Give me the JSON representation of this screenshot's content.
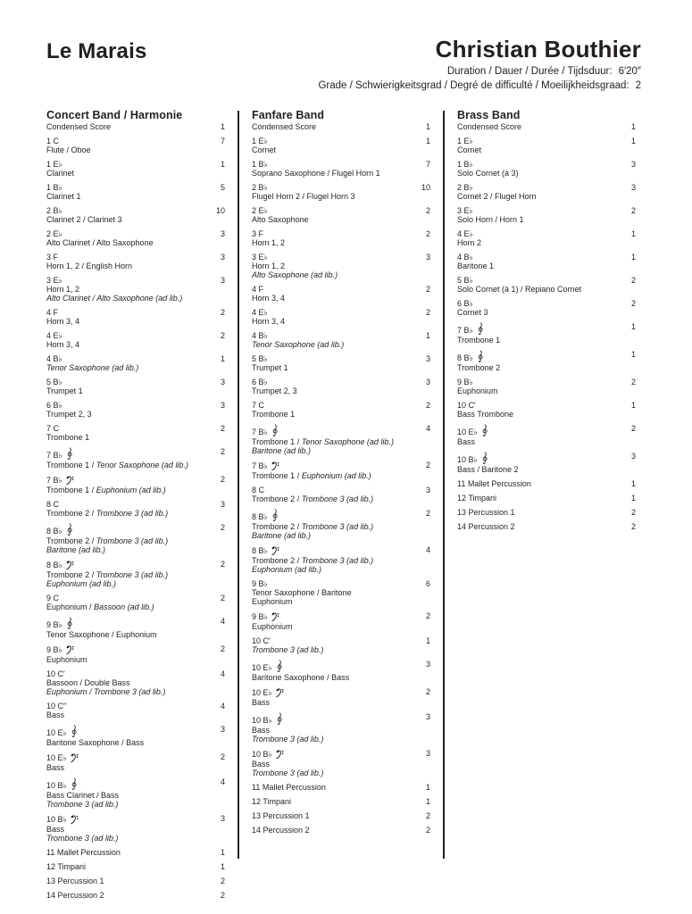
{
  "header": {
    "title": "Le Marais",
    "composer": "Christian Bouthier",
    "duration_label": "Duration / Dauer / Durée / Tijdsduur:",
    "duration_value": "6′20″",
    "grade_label": "Grade / Schwierigkeitsgrad / Degré de difficulté / Moeilijkheidsgraad:",
    "grade_value": "2"
  },
  "colors": {
    "text": "#231f20",
    "divider": "#231f20",
    "background": "#ffffff"
  },
  "icons": {
    "treble_clef": "treble-clef-icon",
    "bass_clef": "bass-clef-icon",
    "flat_sign": "♭"
  },
  "columns": [
    {
      "title": "Concert Band / Harmonie",
      "items": [
        {
          "head": "Condensed Score",
          "lines": [],
          "count": "1"
        },
        {
          "head": "1 C",
          "lines": [
            "Flute / Oboe"
          ],
          "count": "7"
        },
        {
          "head": "1 E♭",
          "lines": [
            "Clarinet"
          ],
          "count": "1"
        },
        {
          "head": "1 B♭",
          "lines": [
            "Clarinet 1"
          ],
          "count": "5"
        },
        {
          "head": "2 B♭",
          "lines": [
            "Clarinet 2 / Clarinet 3"
          ],
          "count": "10"
        },
        {
          "head": "2 E♭",
          "lines": [
            "Alto Clarinet / Alto Saxophone"
          ],
          "count": "3"
        },
        {
          "head": "3 F",
          "lines": [
            "Horn 1, 2 / English Horn"
          ],
          "count": "3"
        },
        {
          "head": "3 E♭",
          "lines": [
            "Horn 1, 2",
            "*Alto Clarinet / Alto Saxophone (ad lib.)*"
          ],
          "count": "3"
        },
        {
          "head": "4 F",
          "lines": [
            "Horn 3, 4"
          ],
          "count": "2"
        },
        {
          "head": "4 E♭",
          "lines": [
            "Horn 3, 4"
          ],
          "count": "2"
        },
        {
          "head": "4 B♭",
          "lines": [
            "*Tenor Saxophone (ad lib.)*"
          ],
          "count": "1"
        },
        {
          "head": "5 B♭",
          "lines": [
            "Trumpet 1"
          ],
          "count": "3"
        },
        {
          "head": "6 B♭",
          "lines": [
            "Trumpet 2, 3"
          ],
          "count": "3"
        },
        {
          "head": "7 C",
          "lines": [
            "Trombone 1"
          ],
          "count": "2"
        },
        {
          "head": "7 B♭ {G}",
          "lines": [
            "Trombone 1 / *Tenor Saxophone (ad lib.)*"
          ],
          "count": "2"
        },
        {
          "head": "7 B♭ {F}",
          "lines": [
            "Trombone 1 / *Euphonium (ad lib.)*"
          ],
          "count": "2"
        },
        {
          "head": "8 C",
          "lines": [
            "Trombone 2 / *Trombone 3 (ad lib.)*"
          ],
          "count": "3"
        },
        {
          "head": "8 B♭ {G}",
          "lines": [
            "Trombone 2 / *Trombone 3 (ad lib.)*",
            "*Baritone (ad lib.)*"
          ],
          "count": "2"
        },
        {
          "head": "8 B♭ {F}",
          "lines": [
            "Trombone 2 / *Trombone 3 (ad lib.)*",
            "*Euphonium (ad lib.)*"
          ],
          "count": "2"
        },
        {
          "head": "9 C",
          "lines": [
            "Euphonium / *Bassoon (ad lib.)*"
          ],
          "count": "2"
        },
        {
          "head": "9 B♭ {G}",
          "lines": [
            "Tenor Saxophone / Euphonium"
          ],
          "count": "4"
        },
        {
          "head": "9 B♭ {F}",
          "lines": [
            "Euphonium"
          ],
          "count": "2"
        },
        {
          "head": "10 C′",
          "lines": [
            "Bassoon / Double Bass",
            "*Euphonium / Trombone 3 (ad lib.)*"
          ],
          "count": "4"
        },
        {
          "head": "10 C″",
          "lines": [
            "Bass"
          ],
          "count": "4"
        },
        {
          "head": "10 E♭ {G}",
          "lines": [
            "Baritone Saxophone / Bass"
          ],
          "count": "3"
        },
        {
          "head": "10 E♭ {F}",
          "lines": [
            "Bass"
          ],
          "count": "2"
        },
        {
          "head": "10 B♭ {G}",
          "lines": [
            "Bass Clarinet / Bass",
            "*Trombone 3 (ad lib.)*"
          ],
          "count": "4"
        },
        {
          "head": "10 B♭ {F}",
          "lines": [
            "Bass",
            "*Trombone 3 (ad lib.)*"
          ],
          "count": "3"
        },
        {
          "head": "11 Mallet Percussion",
          "lines": [],
          "count": "1"
        },
        {
          "head": "12 Timpani",
          "lines": [],
          "count": "1"
        },
        {
          "head": "13 Percussion 1",
          "lines": [],
          "count": "2"
        },
        {
          "head": "14 Percussion 2",
          "lines": [],
          "count": "2"
        }
      ]
    },
    {
      "title": "Fanfare Band",
      "items": [
        {
          "head": "Condensed Score",
          "lines": [],
          "count": "1"
        },
        {
          "head": "1 E♭",
          "lines": [
            "Cornet"
          ],
          "count": "1"
        },
        {
          "head": "1 B♭",
          "lines": [
            "Soprano Saxophone / Flugel Horn 1"
          ],
          "count": "7"
        },
        {
          "head": "2 B♭",
          "lines": [
            "Flugel Horn 2 / Flugel Horn 3"
          ],
          "count": "10"
        },
        {
          "head": "2 E♭",
          "lines": [
            "Alto Saxophone"
          ],
          "count": "2"
        },
        {
          "head": "3 F",
          "lines": [
            "Horn 1, 2"
          ],
          "count": "2"
        },
        {
          "head": "3 E♭",
          "lines": [
            "Horn 1, 2",
            "*Alto Saxophone (ad lib.)*"
          ],
          "count": "3"
        },
        {
          "head": "4 F",
          "lines": [
            "Horn 3, 4"
          ],
          "count": "2"
        },
        {
          "head": "4 E♭",
          "lines": [
            "Horn 3, 4"
          ],
          "count": "2"
        },
        {
          "head": "4 B♭",
          "lines": [
            "*Tenor Saxophone (ad lib.)*"
          ],
          "count": "1"
        },
        {
          "head": "5 B♭",
          "lines": [
            "Trumpet 1"
          ],
          "count": "3"
        },
        {
          "head": "6 B♭",
          "lines": [
            "Trumpet 2, 3"
          ],
          "count": "3"
        },
        {
          "head": "7 C",
          "lines": [
            "Trombone 1"
          ],
          "count": "2"
        },
        {
          "head": "7 B♭ {G}",
          "lines": [
            "Trombone 1 / *Tenor Saxophone (ad lib.)*",
            "*Baritone (ad lib.)*"
          ],
          "count": "4"
        },
        {
          "head": "7 B♭ {F}",
          "lines": [
            "Trombone 1 / *Euphonium (ad lib.)*"
          ],
          "count": "2"
        },
        {
          "head": "8 C",
          "lines": [
            "Trombone 2 / *Trombone 3 (ad lib.)*"
          ],
          "count": "3"
        },
        {
          "head": "8 B♭ {G}",
          "lines": [
            "Trombone 2 / *Trombone 3 (ad lib.)*",
            "*Baritone (ad lib.)*"
          ],
          "count": "2"
        },
        {
          "head": "8 B♭ {F}",
          "lines": [
            "Trombone 2 / *Trombone 3 (ad lib.)*",
            "*Euphonium (ad lib.)*"
          ],
          "count": "4"
        },
        {
          "head": "9 B♭",
          "lines": [
            "Tenor Saxophone / Baritone",
            "Euphonium"
          ],
          "count": "6"
        },
        {
          "head": "9 B♭ {F}",
          "lines": [
            "Euphonium"
          ],
          "count": "2"
        },
        {
          "head": "10 C′",
          "lines": [
            "*Trombone 3 (ad lib.)*"
          ],
          "count": "1"
        },
        {
          "head": "10 E♭ {G}",
          "lines": [
            "Baritone Saxophone / Bass"
          ],
          "count": "3"
        },
        {
          "head": "10 E♭ {F}",
          "lines": [
            "Bass"
          ],
          "count": "2"
        },
        {
          "head": "10 B♭ {G}",
          "lines": [
            "Bass",
            "*Trombone 3 (ad lib.)*"
          ],
          "count": "3"
        },
        {
          "head": "10 B♭ {F}",
          "lines": [
            "Bass",
            "*Trombone 3 (ad lib.)*"
          ],
          "count": "3"
        },
        {
          "head": "11 Mallet Percussion",
          "lines": [],
          "count": "1"
        },
        {
          "head": "12 Timpani",
          "lines": [],
          "count": "1"
        },
        {
          "head": "13 Percussion 1",
          "lines": [],
          "count": "2"
        },
        {
          "head": "14 Percussion 2",
          "lines": [],
          "count": "2"
        }
      ]
    },
    {
      "title": "Brass Band",
      "items": [
        {
          "head": "Condensed Score",
          "lines": [],
          "count": "1"
        },
        {
          "head": "1 E♭",
          "lines": [
            "Cornet"
          ],
          "count": "1"
        },
        {
          "head": "1 B♭",
          "lines": [
            "Solo Cornet (à 3)"
          ],
          "count": "3"
        },
        {
          "head": "2 B♭",
          "lines": [
            "Cornet 2 / Flugel Horn"
          ],
          "count": "3"
        },
        {
          "head": "3 E♭",
          "lines": [
            "Solo Horn / Horn 1"
          ],
          "count": "2"
        },
        {
          "head": "4 E♭",
          "lines": [
            "Horn 2"
          ],
          "count": "1"
        },
        {
          "head": "4 B♭",
          "lines": [
            "Baritone 1"
          ],
          "count": "1"
        },
        {
          "head": "5 B♭",
          "lines": [
            "Solo Cornet (à 1) / Repiano Cornet"
          ],
          "count": "2"
        },
        {
          "head": "6 B♭",
          "lines": [
            "Cornet 3"
          ],
          "count": "2"
        },
        {
          "head": "7 B♭ {G}",
          "lines": [
            "Trombone 1"
          ],
          "count": "1"
        },
        {
          "head": "8 B♭ {G}",
          "lines": [
            "Trombone 2"
          ],
          "count": "1"
        },
        {
          "head": "9 B♭",
          "lines": [
            "Euphonium"
          ],
          "count": "2"
        },
        {
          "head": "10 C′",
          "lines": [
            "Bass Trombone"
          ],
          "count": "1"
        },
        {
          "head": "10 E♭ {G}",
          "lines": [
            "Bass"
          ],
          "count": "2"
        },
        {
          "head": "10 B♭ {G}",
          "lines": [
            "Bass / Baritone 2"
          ],
          "count": "3"
        },
        {
          "head": "11 Mallet Percussion",
          "lines": [],
          "count": "1"
        },
        {
          "head": "12 Timpani",
          "lines": [],
          "count": "1"
        },
        {
          "head": "13 Percussion 1",
          "lines": [],
          "count": "2"
        },
        {
          "head": "14 Percussion 2",
          "lines": [],
          "count": "2"
        }
      ]
    }
  ]
}
